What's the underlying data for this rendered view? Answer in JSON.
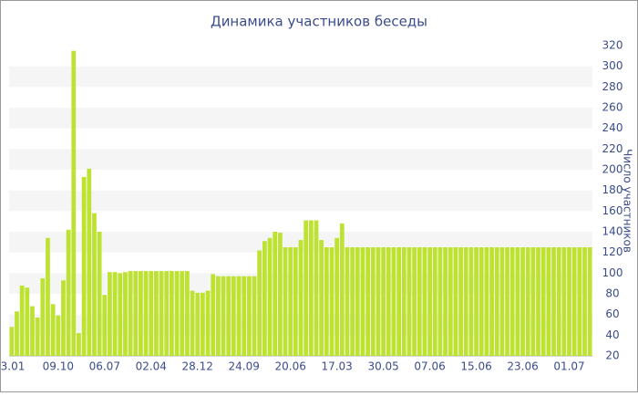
{
  "chart_data": {
    "type": "bar",
    "title": "Динамика участников беседы",
    "y_axis_label": "Число участников",
    "categories": [
      "3.01",
      null,
      null,
      null,
      null,
      null,
      null,
      null,
      null,
      "09.10",
      null,
      null,
      null,
      null,
      null,
      null,
      null,
      null,
      "06.07",
      null,
      null,
      null,
      null,
      null,
      null,
      null,
      null,
      "02.04",
      null,
      null,
      null,
      null,
      null,
      null,
      null,
      null,
      "28.12",
      null,
      null,
      null,
      null,
      null,
      null,
      null,
      null,
      "24.09",
      null,
      null,
      null,
      null,
      null,
      null,
      null,
      null,
      "20.06",
      null,
      null,
      null,
      null,
      null,
      null,
      null,
      null,
      "17.03",
      null,
      null,
      null,
      null,
      null,
      null,
      null,
      null,
      "30.05",
      null,
      null,
      null,
      null,
      null,
      null,
      null,
      null,
      "07.06",
      null,
      null,
      null,
      null,
      null,
      null,
      null,
      null,
      "15.06",
      null,
      null,
      null,
      null,
      null,
      null,
      null,
      null,
      "23.06",
      null,
      null,
      null,
      null,
      null,
      null,
      null,
      null,
      "01.07",
      null,
      null,
      null,
      null
    ],
    "values": [
      48,
      63,
      88,
      86,
      68,
      57,
      95,
      134,
      70,
      59,
      93,
      142,
      315,
      42,
      193,
      201,
      158,
      140,
      79,
      101,
      101,
      100,
      101,
      102,
      102,
      102,
      102,
      102,
      102,
      102,
      102,
      102,
      102,
      102,
      102,
      83,
      81,
      81,
      83,
      99,
      97,
      97,
      97,
      97,
      97,
      97,
      97,
      97,
      122,
      131,
      134,
      140,
      139,
      125,
      125,
      125,
      132,
      151,
      151,
      151,
      132,
      125,
      125,
      134,
      148,
      125,
      125,
      125,
      125,
      125,
      125,
      125,
      125,
      125,
      125,
      125,
      125,
      125,
      125,
      125,
      125,
      125,
      125,
      125,
      125,
      125,
      125,
      125,
      125,
      125,
      125,
      125,
      125,
      125,
      125,
      125,
      125,
      125,
      125,
      125,
      125,
      125,
      125,
      125,
      125,
      125,
      125,
      125,
      125,
      125,
      125,
      125,
      125
    ],
    "color": "#bde232",
    "ylim": [
      20,
      320
    ],
    "yticks": [
      20,
      40,
      60,
      80,
      100,
      120,
      140,
      160,
      180,
      200,
      220,
      240,
      260,
      280,
      300,
      320
    ],
    "grid": true
  }
}
